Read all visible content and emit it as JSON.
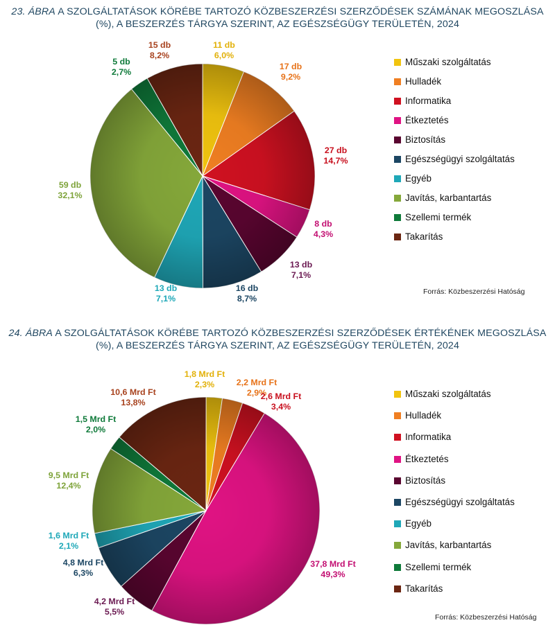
{
  "figures": [
    {
      "title_num": "23. ÁBRA",
      "title_line1": "A SZOLGÁLTATÁSOK KÖRÉBE TARTOZÓ KÖZBESZERZÉSI SZERZŐDÉSEK SZÁMÁNAK MEGOSZLÁSA",
      "title_line2": "(%), A BESZERZÉS TÁRGYA SZERINT, AZ EGÉSZSÉGÜGY TERÜLETÉN, 2024",
      "source": "Forrás: Közbeszerzési Hatóság",
      "legend": [
        "Műszaki szolgáltatás",
        "Hulladék",
        "Informatika",
        "Étkeztetés",
        "Biztosítás",
        "Egészségügyi szolgáltatás",
        "Egyéb",
        "Javítás, karbantartás",
        "Szellemi termék",
        "Takarítás"
      ]
    },
    {
      "title_num": "24. ÁBRA",
      "title_line1": "A SZOLGÁLTATÁSOK KÖRÉBE TARTOZÓ KÖZBESZERZÉSI SZERZŐDÉSEK ÉRTÉKÉNEK MEGOSZLÁSA",
      "title_line2": "(%), A BESZERZÉS TÁRGYA SZERINT, AZ EGÉSZSÉGÜGY TERÜLETÉN, 2024",
      "source": "Forrás: Közbeszerzési Hatóság",
      "legend": [
        "Műszaki szolgáltatás",
        "Hulladék",
        "Informatika",
        "Étkeztetés",
        "Biztosítás",
        "Egészségügyi szolgáltatás",
        "Egyéb",
        "Javítás, karbantartás",
        "Szellemi termék",
        "Takarítás"
      ]
    }
  ],
  "colors": {
    "slices": [
      "#f1c40f",
      "#f07f22",
      "#d01121",
      "#e01383",
      "#5a0530",
      "#1c4663",
      "#1fa8b8",
      "#85a83a",
      "#0f7a3a",
      "#6b2612"
    ],
    "labels": [
      "#e2b10a",
      "#e7731a",
      "#c8101e",
      "#c30f72",
      "#6b1a52",
      "#1c4663",
      "#1fa8b8",
      "#7ea33a",
      "#0f7a3a",
      "#a8431f"
    ]
  },
  "chart_data": [
    {
      "type": "pie",
      "categories": [
        "Műszaki szolgáltatás",
        "Hulladék",
        "Informatika",
        "Étkeztetés",
        "Biztosítás",
        "Egészségügyi szolgáltatás",
        "Egyéb",
        "Javítás, karbantartás",
        "Szellemi termék",
        "Takarítás"
      ],
      "values": [
        6.0,
        9.2,
        14.7,
        4.3,
        7.1,
        8.7,
        7.1,
        32.1,
        2.7,
        8.2
      ],
      "label_top": [
        "11 db",
        "17 db",
        "27 db",
        "8 db",
        "13 db",
        "16 db",
        "13 db",
        "59 db",
        "5 db",
        "15 db"
      ],
      "label_bottom": [
        "6,0%",
        "9,2%",
        "14,7%",
        "4,3%",
        "7,1%",
        "8,7%",
        "7,1%",
        "32,1%",
        "2,7%",
        "8,2%"
      ],
      "legend_position": "right"
    },
    {
      "type": "pie",
      "categories": [
        "Műszaki szolgáltatás",
        "Hulladék",
        "Informatika",
        "Étkeztetés",
        "Biztosítás",
        "Egészségügyi szolgáltatás",
        "Egyéb",
        "Javítás, karbantartás",
        "Szellemi termék",
        "Takarítás"
      ],
      "values": [
        2.3,
        2.9,
        3.4,
        49.3,
        5.5,
        6.3,
        2.1,
        12.4,
        2.0,
        13.8
      ],
      "label_top": [
        "1,8 Mrd Ft",
        "2,2 Mrd Ft",
        "2,6 Mrd Ft",
        "37,8 Mrd Ft",
        "4,2 Mrd Ft",
        "4,8 Mrd Ft",
        "1,6 Mrd Ft",
        "9,5 Mrd Ft",
        "1,5 Mrd Ft",
        "10,6 Mrd Ft"
      ],
      "label_bottom": [
        "2,3%",
        "2,9%",
        "3,4%",
        "49,3%",
        "5,5%",
        "6,3%",
        "2,1%",
        "12,4%",
        "2,0%",
        "13,8%"
      ],
      "legend_position": "right"
    }
  ]
}
